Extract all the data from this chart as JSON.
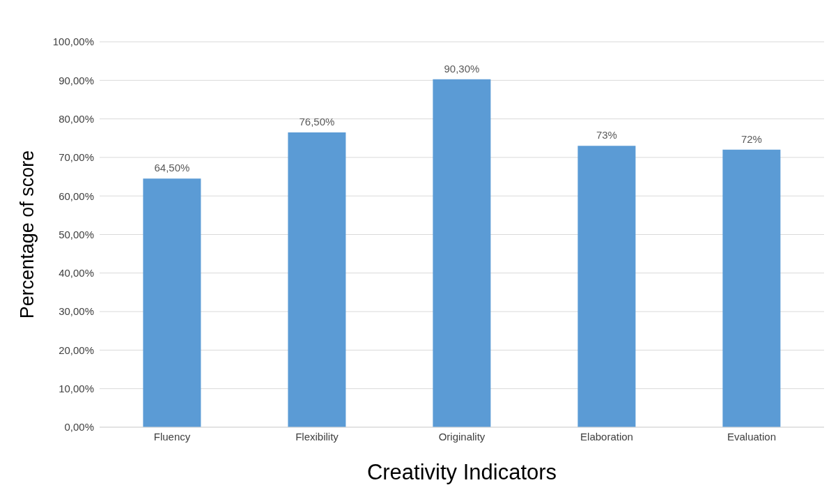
{
  "chart_data": {
    "type": "bar",
    "xlabel": "Creativity Indicators",
    "ylabel": "Percentage of score",
    "categories": [
      "Fluency",
      "Flexibility",
      "Originality",
      "Elaboration",
      "Evaluation"
    ],
    "values": [
      64.5,
      76.5,
      90.3,
      73,
      72
    ],
    "value_labels": [
      "64,50%",
      "76,50%",
      "90,30%",
      "73%",
      "72%"
    ],
    "color": "#5b9bd5",
    "ylim": [
      0,
      100
    ],
    "yticks": [
      {
        "value": 0,
        "label": "0,00%"
      },
      {
        "value": 10,
        "label": "10,00%"
      },
      {
        "value": 20,
        "label": "20,00%"
      },
      {
        "value": 30,
        "label": "30,00%"
      },
      {
        "value": 40,
        "label": "40,00%"
      },
      {
        "value": 50,
        "label": "50,00%"
      },
      {
        "value": 60,
        "label": "60,00%"
      },
      {
        "value": 70,
        "label": "70,00%"
      },
      {
        "value": 80,
        "label": "80,00%"
      },
      {
        "value": 90,
        "label": "90,00%"
      },
      {
        "value": 100,
        "label": "100,00%"
      }
    ],
    "grid": "y",
    "legend": false
  }
}
